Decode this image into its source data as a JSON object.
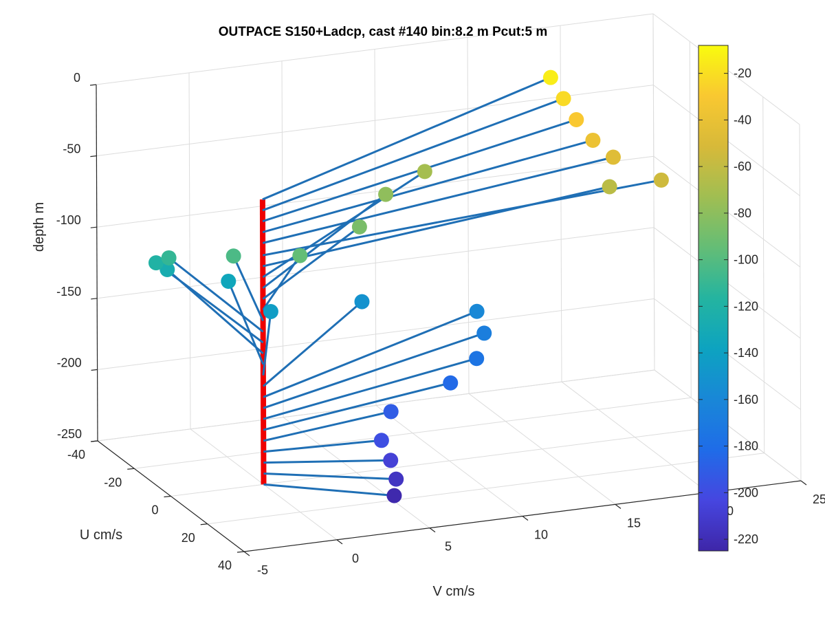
{
  "chart_data": {
    "type": "scatter3d",
    "title": "OUTPACE S150+Ladcp, cast #140 bin:8.2 m  Pcut:5 m",
    "xlabel": "V cm/s",
    "ylabel": "U cm/s",
    "zlabel": "depth m",
    "xlim": [
      -5,
      25
    ],
    "ylim": [
      -40,
      40
    ],
    "zlim": [
      -250,
      0
    ],
    "xticks": [
      "-5",
      "0",
      "5",
      "10",
      "15",
      "20",
      "25"
    ],
    "yticks": [
      "-40",
      "-20",
      "0",
      "20",
      "40"
    ],
    "zticks": [
      "-250",
      "-200",
      "-150",
      "-100",
      "-50",
      "0"
    ],
    "grid": true,
    "colorbar": {
      "range": [
        -225,
        -8
      ],
      "ticks": [
        "-20",
        "-40",
        "-60",
        "-80",
        "-100",
        "-120",
        "-140",
        "-160",
        "-180",
        "-200",
        "-220"
      ],
      "colormap": "parula"
    },
    "profile_line": {
      "color": "#ee0000",
      "v": 0,
      "u": 0,
      "depth_top": -50,
      "depth_bottom": -250
    },
    "vector_color": "#1f6fb5",
    "series": [
      {
        "points": [
          {
            "depth": -14,
            "v": 17.6,
            "u": -21
          },
          {
            "depth": -22,
            "v": 17.6,
            "u": -14
          },
          {
            "depth": -30,
            "v": 17.6,
            "u": -7
          },
          {
            "depth": -38,
            "v": 17.8,
            "u": 0
          },
          {
            "depth": -46,
            "v": 18.4,
            "u": 5
          },
          {
            "depth": -55,
            "v": 20.0,
            "u": 15
          },
          {
            "depth": -63,
            "v": 17.9,
            "u": 8
          },
          {
            "depth": -71,
            "v": 11.0,
            "u": -23
          },
          {
            "depth": -79,
            "v": 8.5,
            "u": -19
          },
          {
            "depth": -87,
            "v": 6.0,
            "u": -8
          },
          {
            "depth": -95,
            "v": 2.2,
            "u": -2
          },
          {
            "depth": -103,
            "v": -0.2,
            "u": -14
          },
          {
            "depth": -111,
            "v": -2.6,
            "u": -25
          },
          {
            "depth": -119,
            "v": -2.8,
            "u": -30
          },
          {
            "depth": -127,
            "v": -2.0,
            "u": -32
          },
          {
            "depth": -135,
            "v": 0.8,
            "u": -27
          },
          {
            "depth": -143,
            "v": 1.6,
            "u": -12
          },
          {
            "depth": -151,
            "v": 7.1,
            "u": -18
          },
          {
            "depth": -159,
            "v": 12.5,
            "u": -10
          },
          {
            "depth": -167,
            "v": 12.2,
            "u": -3
          },
          {
            "depth": -175,
            "v": 11.0,
            "u": 5
          },
          {
            "depth": -183,
            "v": 9.0,
            "u": 11
          },
          {
            "depth": -191,
            "v": 5.2,
            "u": 17
          },
          {
            "depth": -199,
            "v": 3.7,
            "u": 27
          },
          {
            "depth": -207,
            "v": 3.6,
            "u": 33
          },
          {
            "depth": -215,
            "v": 3.4,
            "u": 38
          },
          {
            "depth": -223,
            "v": 3.0,
            "u": 41
          }
        ]
      }
    ]
  }
}
